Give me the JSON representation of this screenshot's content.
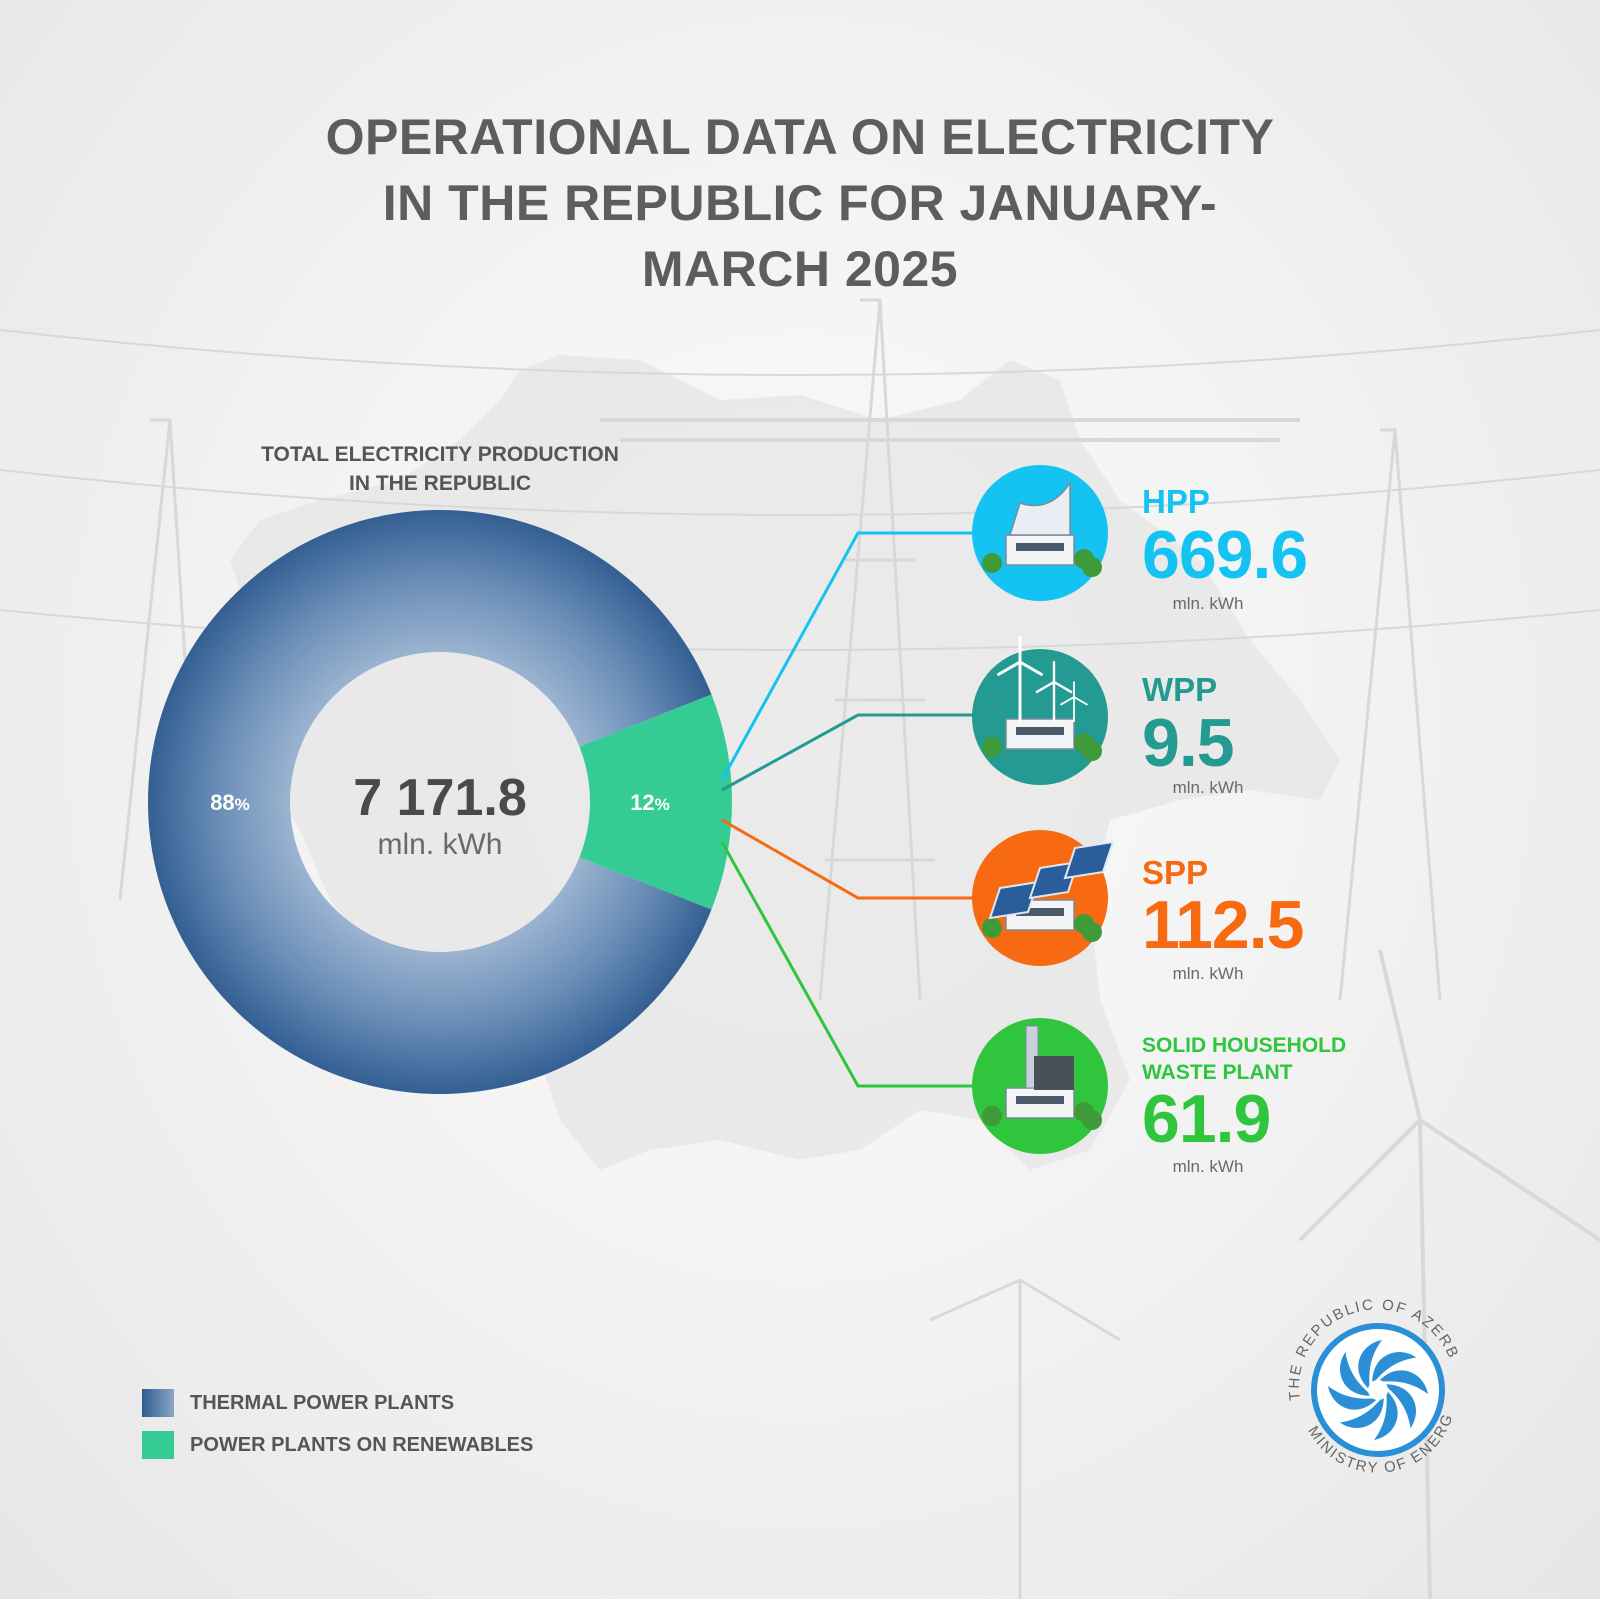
{
  "title": [
    "OPERATIONAL DATA ON ELECTRICITY",
    "IN THE REPUBLIC FOR JANUARY-",
    "MARCH 2025"
  ],
  "donut_heading": [
    "TOTAL ELECTRICITY PRODUCTION",
    "IN THE REPUBLIC"
  ],
  "chart_data": {
    "type": "pie",
    "title": "TOTAL ELECTRICITY PRODUCTION IN THE REPUBLIC",
    "total": "7 171.8",
    "total_unit": "mln. kWh",
    "slices": [
      {
        "name": "THERMAL POWER PLANTS",
        "percent": 88,
        "label": "88",
        "color": "#3d6a9c"
      },
      {
        "name": "POWER PLANTS ON RENEWABLES",
        "percent": 12,
        "label": "12",
        "color": "#35cb95"
      }
    ],
    "pct_sign": "%",
    "breakdown": [
      {
        "name": "HPP",
        "value": 669.6,
        "display": "669.6",
        "unit": "mln. kWh",
        "color": "#14c3f2",
        "icon": "hydro-plant-icon"
      },
      {
        "name": "WPP",
        "value": 9.5,
        "display": "9.5",
        "unit": "mln. kWh",
        "color": "#239a92",
        "icon": "wind-plant-icon"
      },
      {
        "name": "SPP",
        "value": 112.5,
        "display": "112.5",
        "unit": "mln. kWh",
        "color": "#f86a12",
        "icon": "solar-plant-icon"
      },
      {
        "name_lines": [
          "SOLID HOUSEHOLD",
          "WASTE PLANT"
        ],
        "value": 61.9,
        "display": "61.9",
        "unit": "mln. kWh",
        "color": "#2fc63e",
        "icon": "waste-plant-icon"
      }
    ],
    "legend_placement": "bottom-left"
  },
  "legend": [
    {
      "label": "THERMAL POWER PLANTS",
      "color": "#3d6a9c"
    },
    {
      "label": "POWER PLANTS ON RENEWABLES",
      "color": "#35cb95"
    }
  ],
  "logo": {
    "text_top": "THE REPUBLIC OF AZERBAIJAN",
    "text_bottom": "MINISTRY OF ENERGY",
    "color": "#2a8fd6"
  }
}
